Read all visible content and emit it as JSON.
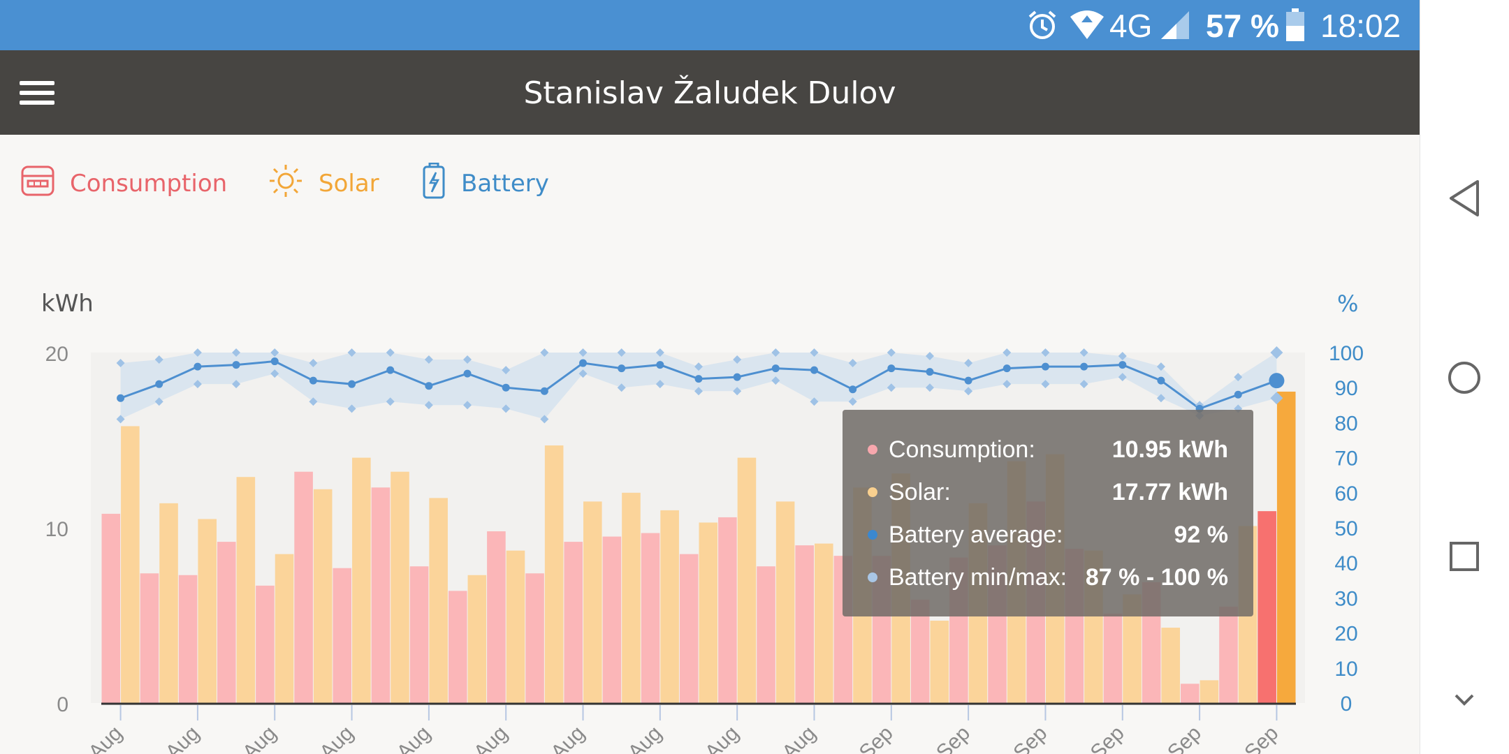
{
  "status_bar": {
    "network": "4G",
    "battery": "57 %",
    "time": "18:02",
    "icons": [
      "alarm-icon",
      "wifi-icon",
      "signal-icon",
      "battery-icon"
    ]
  },
  "app_bar": {
    "title": "Stanislav Žaludek Dulov"
  },
  "tabs": [
    {
      "label": "Consumption",
      "icon": "consumption-meter-icon",
      "color": "#e8646a"
    },
    {
      "label": "Solar",
      "icon": "sun-icon",
      "color": "#f2a637"
    },
    {
      "label": "Battery",
      "icon": "battery-charging-icon",
      "color": "#3f8cc8"
    }
  ],
  "tooltip": {
    "rows": [
      {
        "label": "Consumption:",
        "value": "10.95 kWh",
        "color": "#f7a7ad"
      },
      {
        "label": "Solar:",
        "value": "17.77 kWh",
        "color": "#f9d08f"
      },
      {
        "label": "Battery average:",
        "value": "92 %",
        "color": "#3b88d0"
      },
      {
        "label": "Battery min/max:",
        "value": "87 % - 100 %",
        "color": "#a9c6e6"
      }
    ]
  },
  "colors": {
    "consumption": "#fbb6b8",
    "solar": "#fbd49a",
    "consumption_selected": "#f7716f",
    "solar_selected": "#f6a93d",
    "battery": "#4d8fd0",
    "battery_band": "#d6e3ef"
  },
  "chart_data": {
    "type": "bar",
    "left_axis": {
      "title": "kWh",
      "ticks": [
        "0",
        "10",
        "20"
      ],
      "range": [
        0,
        20
      ]
    },
    "right_axis": {
      "title": "%",
      "ticks": [
        "0",
        "10",
        "20",
        "30",
        "40",
        "50",
        "60",
        "70",
        "80",
        "90",
        "100"
      ],
      "range": [
        0,
        100
      ]
    },
    "x_ticks": [
      "Aug",
      "Aug",
      "Aug",
      "Aug",
      "Aug",
      "Aug",
      "Aug",
      "Aug",
      "Aug",
      "Aug",
      "Sep",
      "Sep",
      "Sep",
      "Sep",
      "Sep",
      "Sep"
    ],
    "selected_index": 30,
    "series": [
      {
        "name": "Consumption",
        "unit": "kWh",
        "values": [
          10.8,
          7.4,
          7.3,
          9.2,
          6.7,
          13.2,
          7.7,
          12.3,
          7.8,
          6.4,
          9.8,
          7.4,
          9.2,
          9.5,
          9.7,
          8.5,
          10.6,
          7.8,
          9.0,
          8.4,
          8.4,
          5.9,
          8.3,
          9.0,
          11.5,
          8.8,
          5.1,
          6.9,
          1.1,
          5.5,
          10.95
        ]
      },
      {
        "name": "Solar",
        "unit": "kWh",
        "values": [
          15.8,
          11.4,
          10.5,
          12.9,
          8.5,
          12.2,
          14.0,
          13.2,
          11.7,
          7.3,
          8.7,
          14.7,
          11.5,
          12.0,
          11.0,
          10.3,
          14.0,
          11.5,
          9.1,
          12.3,
          13.1,
          4.7,
          11.4,
          13.8,
          14.2,
          8.7,
          6.2,
          4.3,
          1.3,
          10.1,
          17.77
        ]
      },
      {
        "name": "Battery average",
        "unit": "%",
        "values": [
          87,
          91,
          96,
          96.5,
          97.5,
          92,
          91,
          95,
          90.5,
          94,
          90,
          89,
          97,
          95.5,
          96.5,
          92.5,
          93,
          95.5,
          95,
          89.5,
          95.5,
          94.5,
          92,
          95.5,
          96,
          96,
          96.5,
          92,
          84,
          88,
          92
        ]
      },
      {
        "name": "Battery min",
        "unit": "%",
        "values": [
          81,
          86,
          91,
          91,
          94,
          86,
          84,
          86,
          85,
          85,
          84,
          81,
          94,
          90,
          91,
          89,
          89,
          92,
          86,
          86,
          90,
          90,
          89,
          91,
          91,
          91,
          93,
          87,
          82,
          84,
          87
        ]
      },
      {
        "name": "Battery max",
        "unit": "%",
        "values": [
          97,
          98,
          100,
          100,
          100,
          97,
          100,
          100,
          98,
          98,
          95,
          100,
          100,
          100,
          100,
          96,
          98,
          100,
          100,
          97,
          100,
          99,
          97,
          100,
          100,
          100,
          99,
          96,
          85,
          93,
          100
        ]
      }
    ]
  }
}
